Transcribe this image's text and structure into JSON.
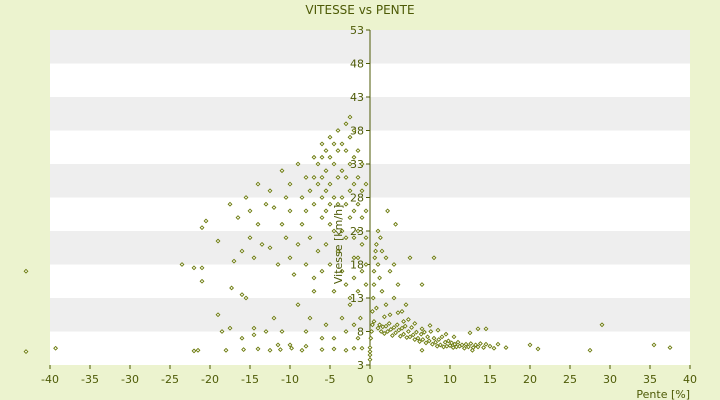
{
  "chart_data": {
    "type": "scatter",
    "title": "VITESSE vs PENTE",
    "xlabel": "Pente [%]",
    "ylabel": "Vitesse [km/h]",
    "xlim": [
      -40,
      40
    ],
    "ylim": [
      3,
      53
    ],
    "xticks": [
      -40,
      -35,
      -30,
      -25,
      -20,
      -15,
      -10,
      -5,
      0,
      5,
      10,
      15,
      20,
      25,
      30,
      35,
      40
    ],
    "yticks": [
      3,
      8,
      13,
      18,
      23,
      28,
      33,
      38,
      43,
      48,
      53
    ],
    "grid": "horizontal alternating bands",
    "colors": {
      "background": "#ecf3cf",
      "band_light": "#ffffff",
      "band_dark": "#eeeeee",
      "marker": "#6b7a0c",
      "axis": "#4d5a06"
    },
    "series": [
      {
        "points": [
          [
            -43,
            17
          ],
          [
            -43,
            5
          ],
          [
            -39.3,
            5.5
          ],
          [
            -23.5,
            18
          ],
          [
            -22,
            17.5
          ],
          [
            -21,
            17.5
          ],
          [
            -21,
            15.5
          ],
          [
            -19,
            10.5
          ],
          [
            -18.5,
            8
          ],
          [
            -17.5,
            8.5
          ],
          [
            -17.3,
            14.5
          ],
          [
            -16,
            13.5
          ],
          [
            -16,
            7
          ],
          [
            -15.5,
            13
          ],
          [
            -14.5,
            8.5
          ],
          [
            -14.5,
            7.5
          ],
          [
            -13,
            8
          ],
          [
            -12,
            10
          ],
          [
            -11.5,
            6
          ],
          [
            -11,
            8
          ],
          [
            -10,
            6
          ],
          [
            -9,
            12
          ],
          [
            -8,
            8
          ],
          [
            -7.5,
            10
          ],
          [
            -7,
            14
          ],
          [
            -6,
            7
          ],
          [
            -5.5,
            9
          ],
          [
            -4.5,
            7
          ],
          [
            -3.5,
            10
          ],
          [
            -3,
            8
          ],
          [
            -2.5,
            12
          ],
          [
            -2,
            9
          ],
          [
            -1.5,
            14
          ],
          [
            -1.2,
            10
          ],
          [
            -1.5,
            7
          ],
          [
            -1,
            5.5
          ],
          [
            -18,
            5.2
          ],
          [
            -15.8,
            5.3
          ],
          [
            -14,
            5.4
          ],
          [
            -12.5,
            5.2
          ],
          [
            -11.2,
            5.3
          ],
          [
            -9.8,
            5.5
          ],
          [
            -8.5,
            5.2
          ],
          [
            -8,
            5.8
          ],
          [
            -6,
            5.3
          ],
          [
            -4.5,
            5.4
          ],
          [
            -3,
            5.2
          ],
          [
            -2,
            5.5
          ],
          [
            -22,
            5.1
          ],
          [
            -21.5,
            5.2
          ],
          [
            -21,
            23.5
          ],
          [
            -20.5,
            24.5
          ],
          [
            -17.5,
            27
          ],
          [
            -16.5,
            25
          ],
          [
            -15.5,
            28
          ],
          [
            -15,
            26
          ],
          [
            -14,
            24
          ],
          [
            -14,
            30
          ],
          [
            -13,
            27
          ],
          [
            -12.5,
            29
          ],
          [
            -12,
            26.5
          ],
          [
            -11,
            24
          ],
          [
            -11,
            32
          ],
          [
            -10.5,
            28
          ],
          [
            -10,
            26
          ],
          [
            -10,
            30
          ],
          [
            -9,
            33
          ],
          [
            -8.5,
            28
          ],
          [
            -8.5,
            24
          ],
          [
            -8,
            31
          ],
          [
            -8,
            26
          ],
          [
            -7.5,
            29
          ],
          [
            -7,
            34
          ],
          [
            -7,
            31
          ],
          [
            -7,
            27
          ],
          [
            -6.5,
            33
          ],
          [
            -6.5,
            30
          ],
          [
            -6,
            36
          ],
          [
            -6,
            34
          ],
          [
            -6,
            31
          ],
          [
            -6,
            28
          ],
          [
            -6,
            25
          ],
          [
            -5.5,
            35
          ],
          [
            -5.5,
            32
          ],
          [
            -5.5,
            29
          ],
          [
            -5.5,
            26
          ],
          [
            -5,
            37
          ],
          [
            -5,
            34
          ],
          [
            -5,
            30
          ],
          [
            -5,
            27
          ],
          [
            -5,
            24
          ],
          [
            -4.5,
            36
          ],
          [
            -4.5,
            33
          ],
          [
            -4.5,
            28
          ],
          [
            -4.5,
            23
          ],
          [
            -4,
            38
          ],
          [
            -4,
            35
          ],
          [
            -4,
            31
          ],
          [
            -4,
            27
          ],
          [
            -3.5,
            36
          ],
          [
            -3.5,
            32
          ],
          [
            -3.5,
            28
          ],
          [
            -3.5,
            23
          ],
          [
            -3,
            39
          ],
          [
            -3,
            35
          ],
          [
            -3,
            31
          ],
          [
            -3,
            27
          ],
          [
            -3,
            22
          ],
          [
            -2.5,
            40
          ],
          [
            -2.5,
            37
          ],
          [
            -2.5,
            33
          ],
          [
            -2.5,
            29
          ],
          [
            -2.5,
            25
          ],
          [
            -2,
            38
          ],
          [
            -2,
            34
          ],
          [
            -2,
            30
          ],
          [
            -2,
            26
          ],
          [
            -2,
            22
          ],
          [
            -2,
            19
          ],
          [
            -1.5,
            35
          ],
          [
            -1.5,
            31
          ],
          [
            -1.5,
            27
          ],
          [
            -1.5,
            23
          ],
          [
            -1.5,
            19
          ],
          [
            -1,
            33
          ],
          [
            -1,
            29
          ],
          [
            -1,
            25
          ],
          [
            -1,
            21
          ],
          [
            -1,
            17
          ],
          [
            -0.5,
            30
          ],
          [
            -0.5,
            26
          ],
          [
            -0.5,
            22
          ],
          [
            -0.5,
            18
          ],
          [
            -0.5,
            15
          ],
          [
            -19,
            21.5
          ],
          [
            -17,
            18.5
          ],
          [
            -16,
            20
          ],
          [
            -15,
            22
          ],
          [
            -14.5,
            19
          ],
          [
            -13.5,
            21
          ],
          [
            -12.5,
            20.5
          ],
          [
            -11.5,
            18
          ],
          [
            -10.5,
            22
          ],
          [
            -10,
            19
          ],
          [
            -9.5,
            16.5
          ],
          [
            -9,
            21
          ],
          [
            -8,
            18
          ],
          [
            -7.5,
            22
          ],
          [
            -7,
            16
          ],
          [
            -6.5,
            20
          ],
          [
            -6,
            17
          ],
          [
            -5.5,
            21
          ],
          [
            -5,
            18
          ],
          [
            -4.5,
            14
          ],
          [
            -4,
            20
          ],
          [
            -3.5,
            17
          ],
          [
            -3,
            15
          ],
          [
            -2.5,
            13
          ],
          [
            -2,
            16
          ],
          [
            0,
            3.8
          ],
          [
            0,
            4.5
          ],
          [
            0,
            5
          ],
          [
            0,
            5.6
          ],
          [
            0.1,
            7
          ],
          [
            0.2,
            8
          ],
          [
            0.3,
            9
          ],
          [
            0.3,
            11
          ],
          [
            0.4,
            13
          ],
          [
            0.5,
            15
          ],
          [
            0.5,
            17
          ],
          [
            0.6,
            19
          ],
          [
            0.7,
            20
          ],
          [
            0.8,
            21
          ],
          [
            1,
            18
          ],
          [
            1.2,
            16
          ],
          [
            1.3,
            22
          ],
          [
            1.5,
            14
          ],
          [
            2,
            19
          ],
          [
            2,
            12
          ],
          [
            2.5,
            17
          ],
          [
            3,
            18
          ],
          [
            3,
            13
          ],
          [
            3.2,
            24
          ],
          [
            3.5,
            15
          ],
          [
            4,
            11
          ],
          [
            4.5,
            12
          ],
          [
            5,
            19
          ],
          [
            6.5,
            15
          ],
          [
            8,
            19
          ],
          [
            1.5,
            20
          ],
          [
            1,
            23
          ],
          [
            2.2,
            26
          ],
          [
            0.5,
            9.5
          ],
          [
            1,
            8.5
          ],
          [
            1.2,
            9
          ],
          [
            1.4,
            8
          ],
          [
            1.6,
            8.7
          ],
          [
            1.8,
            7.7
          ],
          [
            2,
            8.8
          ],
          [
            2.2,
            8
          ],
          [
            2.4,
            9.2
          ],
          [
            2.6,
            8.3
          ],
          [
            2.8,
            7.4
          ],
          [
            3,
            8.6
          ],
          [
            3.2,
            7.8
          ],
          [
            3.4,
            9
          ],
          [
            3.6,
            8.2
          ],
          [
            3.8,
            7.3
          ],
          [
            4,
            8.5
          ],
          [
            4.2,
            7.6
          ],
          [
            4.4,
            8.8
          ],
          [
            4.6,
            7.1
          ],
          [
            4.8,
            8
          ],
          [
            5,
            7.2
          ],
          [
            5.2,
            8.6
          ],
          [
            5.4,
            7.5
          ],
          [
            5.6,
            6.8
          ],
          [
            5.8,
            7.9
          ],
          [
            6,
            7
          ],
          [
            6.2,
            6.5
          ],
          [
            6.4,
            7.6
          ],
          [
            6.6,
            6.8
          ],
          [
            6.8,
            7.9
          ],
          [
            7,
            6.3
          ],
          [
            7.2,
            7.2
          ],
          [
            7.4,
            6.6
          ],
          [
            7.6,
            8
          ],
          [
            7.8,
            6.1
          ],
          [
            8,
            7
          ],
          [
            8.2,
            6.4
          ],
          [
            8.4,
            5.8
          ],
          [
            8.6,
            6.8
          ],
          [
            8.8,
            6
          ],
          [
            9,
            7.2
          ],
          [
            9.2,
            5.7
          ],
          [
            9.4,
            6.4
          ],
          [
            9.6,
            5.8
          ],
          [
            9.8,
            6.6
          ],
          [
            10,
            5.9
          ],
          [
            10.2,
            6.3
          ],
          [
            10.4,
            5.6
          ],
          [
            10.6,
            6.1
          ],
          [
            10.8,
            5.7
          ],
          [
            11,
            6.4
          ],
          [
            11.2,
            5.8
          ],
          [
            11.5,
            6
          ],
          [
            11.8,
            5.5
          ],
          [
            12,
            6.1
          ],
          [
            12.3,
            5.7
          ],
          [
            12.6,
            6.2
          ],
          [
            12.9,
            5.6
          ],
          [
            13.2,
            6
          ],
          [
            13.5,
            5.7
          ],
          [
            13.8,
            6.2
          ],
          [
            14.2,
            5.6
          ],
          [
            14.5,
            6.1
          ],
          [
            15,
            5.8
          ],
          [
            16,
            6.1
          ],
          [
            17,
            5.6
          ],
          [
            4.2,
            9.5
          ],
          [
            5.6,
            9.2
          ],
          [
            6.5,
            8.4
          ],
          [
            7.5,
            8.9
          ],
          [
            8.5,
            8.2
          ],
          [
            9.5,
            7.6
          ],
          [
            10.5,
            7.2
          ],
          [
            12.5,
            7.8
          ],
          [
            13.5,
            8.4
          ],
          [
            14.5,
            8.4
          ],
          [
            20,
            6
          ],
          [
            29,
            9
          ],
          [
            35.5,
            6
          ],
          [
            37.5,
            5.6
          ],
          [
            21,
            5.4
          ],
          [
            27.5,
            5.2
          ],
          [
            15.5,
            5.5
          ],
          [
            12.8,
            5.2
          ],
          [
            6.5,
            5.2
          ],
          [
            2.5,
            10.5
          ],
          [
            3.5,
            10.8
          ],
          [
            1.8,
            10.2
          ],
          [
            0.8,
            11.5
          ],
          [
            4.8,
            9.8
          ]
        ]
      }
    ]
  }
}
